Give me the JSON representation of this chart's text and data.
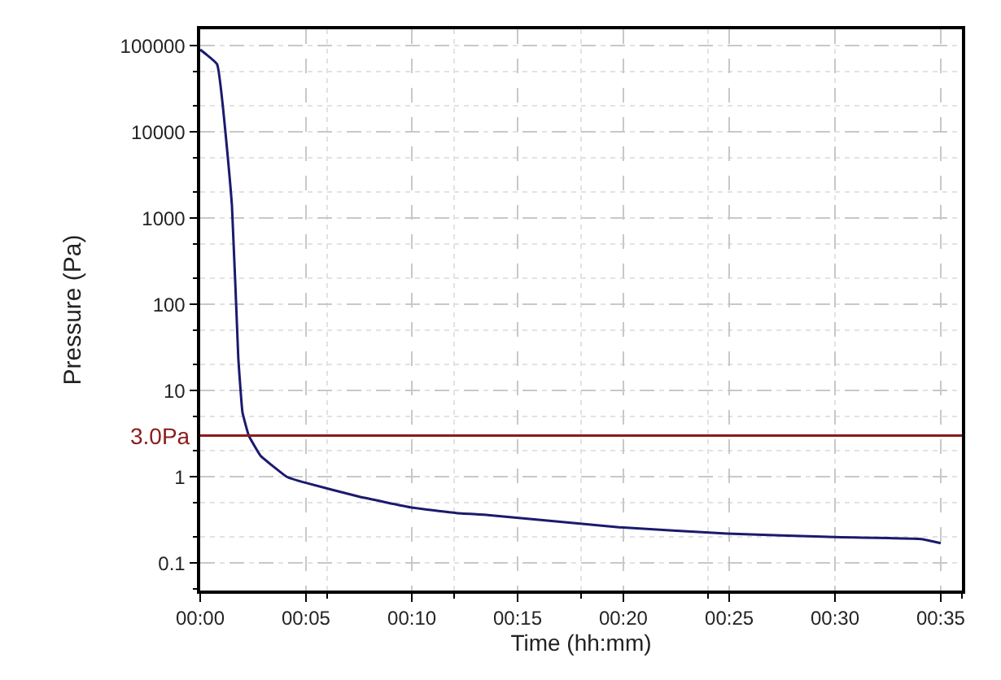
{
  "chart_data": {
    "type": "line",
    "xlabel": "Time (hh:mm)",
    "ylabel": "Pressure (Pa)",
    "log": "y",
    "grid": true,
    "marker": "none",
    "line_style": "solid",
    "x": [
      0,
      0.0133,
      0.025,
      0.03,
      0.0333,
      0.0383,
      0.0475,
      0.0683,
      0.0833,
      0.125,
      0.1667,
      0.2017,
      0.2267,
      0.33,
      0.415,
      0.5,
      0.5683,
      0.5833
    ],
    "series": [
      {
        "color": "#1a1a6e",
        "values": [
          90000,
          61000,
          1400,
          24,
          5.6,
          3.0,
          1.76,
          1.0,
          0.85,
          0.59,
          0.44,
          0.38,
          0.36,
          0.26,
          0.22,
          0.2,
          0.19,
          0.17
        ]
      }
    ],
    "xlim": [
      0,
      0.6
    ],
    "xticks": [
      {
        "value": 0,
        "label": "00:00"
      },
      {
        "value": 0.0833,
        "label": "00:05"
      },
      {
        "value": 0.1667,
        "label": "00:10"
      },
      {
        "value": 0.25,
        "label": "00:15"
      },
      {
        "value": 0.3333,
        "label": "00:20"
      },
      {
        "value": 0.4167,
        "label": "00:25"
      },
      {
        "value": 0.5,
        "label": "00:30"
      },
      {
        "value": 0.5833,
        "label": "00:35"
      }
    ],
    "ylim": [
      0.048,
      155000
    ],
    "yticks": [
      0.1,
      1,
      10,
      100,
      1000,
      10000,
      100000
    ],
    "ref_lines": [
      {
        "axis": "y",
        "value": 3.0,
        "label": "3.0Pa",
        "color": "#8b1a1a",
        "line_style": "solid"
      }
    ]
  }
}
